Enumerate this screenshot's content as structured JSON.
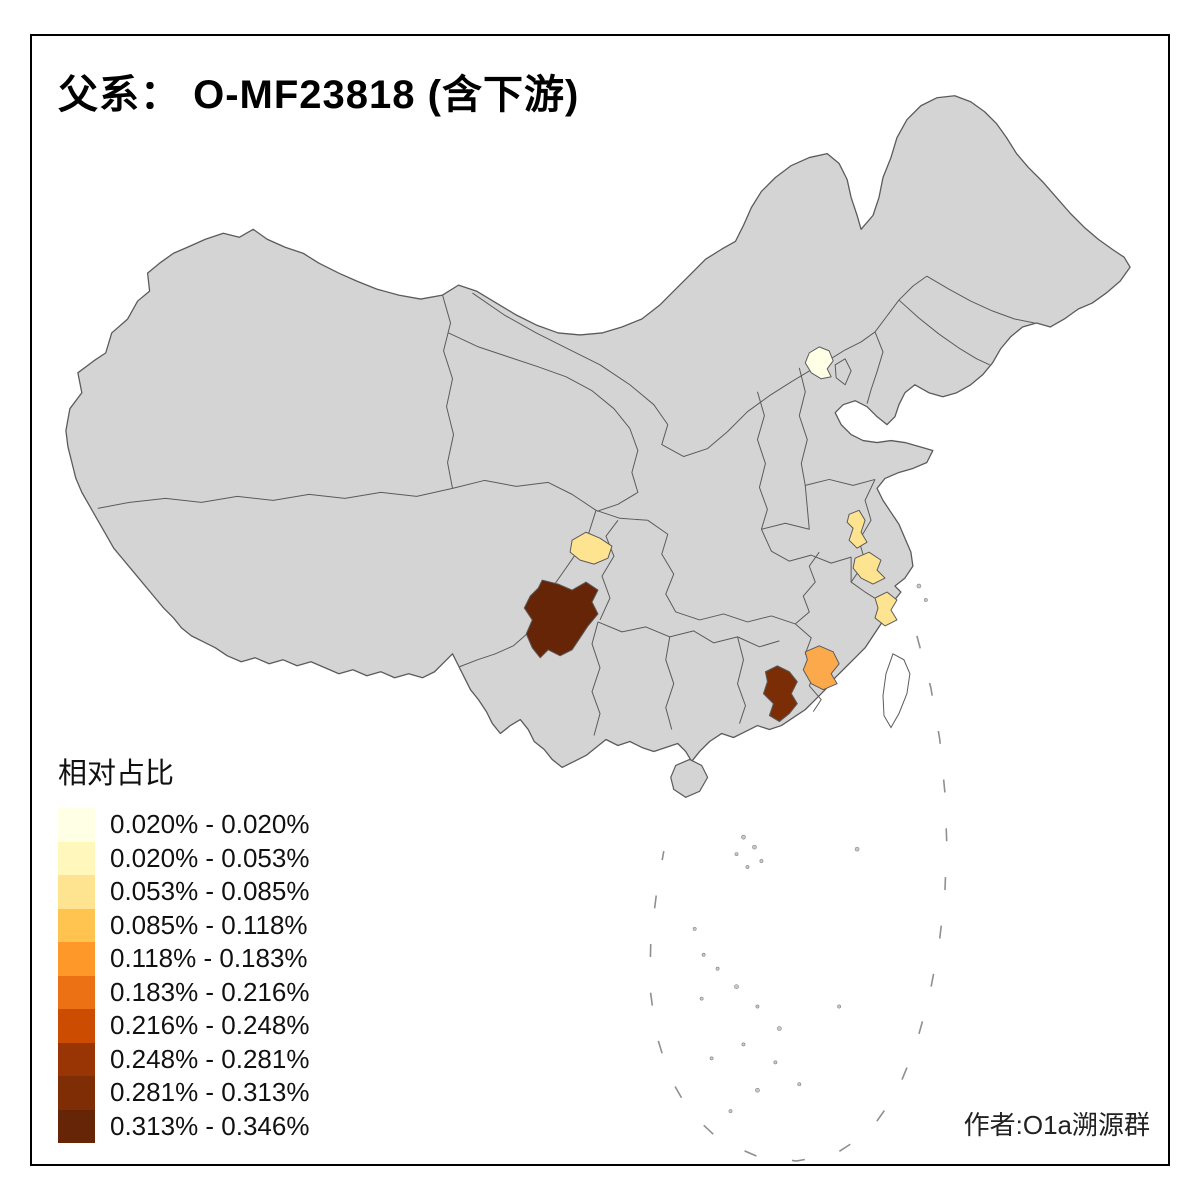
{
  "title": "父系： O-MF23818 (含下游)",
  "credit": "作者:O1a溯源群",
  "legend": {
    "title": "相对占比",
    "items": [
      {
        "label": "0.020% - 0.020%",
        "color": "#FFFFE5"
      },
      {
        "label": "0.020% - 0.053%",
        "color": "#FFF7BC"
      },
      {
        "label": "0.053% - 0.085%",
        "color": "#FEE391"
      },
      {
        "label": "0.085% - 0.118%",
        "color": "#FEC44F"
      },
      {
        "label": "0.118% - 0.183%",
        "color": "#FE9929"
      },
      {
        "label": "0.183% - 0.216%",
        "color": "#EC7014"
      },
      {
        "label": "0.216% - 0.248%",
        "color": "#CC4C02"
      },
      {
        "label": "0.248% - 0.281%",
        "color": "#993404"
      },
      {
        "label": "0.281% - 0.313%",
        "color": "#7E2D05"
      },
      {
        "label": "0.313% - 0.346%",
        "color": "#662506"
      }
    ]
  },
  "map": {
    "land_color": "#D4D4D4",
    "border_color": "#5B5B5B",
    "water_color": "#FFFFFF",
    "regions": [
      {
        "name": "beijing",
        "color": "#FFFFE5"
      },
      {
        "name": "chengdu-area",
        "color": "#FEE391"
      },
      {
        "name": "central-jiangsu",
        "color": "#FEE391"
      },
      {
        "name": "southern-jiangsu",
        "color": "#FEE391"
      },
      {
        "name": "coastal-zhejiang",
        "color": "#FEE391"
      },
      {
        "name": "southwest-sichuan",
        "color": "#662506"
      },
      {
        "name": "coastal-fujian",
        "color": "#FCA94C"
      },
      {
        "name": "eastern-guangdong",
        "color": "#7B2D06"
      }
    ]
  }
}
